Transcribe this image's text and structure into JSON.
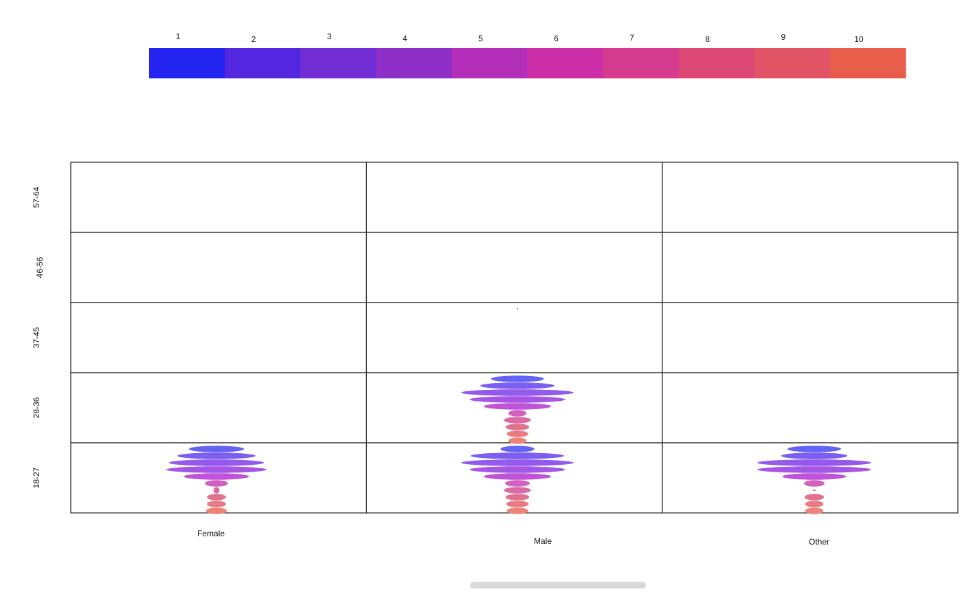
{
  "chart_data": {
    "type": "heatmap",
    "legend": {
      "levels": [
        "1",
        "2",
        "3",
        "4",
        "5",
        "6",
        "7",
        "8",
        "9",
        "10"
      ],
      "colors": [
        "#2424f0",
        "#5327df",
        "#722dd5",
        "#8e2fc7",
        "#b22eb8",
        "#cc2ea8",
        "#d53b8f",
        "#de4876",
        "#e05465",
        "#e85d4a"
      ],
      "placement": "top"
    },
    "x_categories": [
      "Female",
      "Male",
      "Other"
    ],
    "y_categories": [
      "18-27",
      "28-36",
      "37-45",
      "46-56",
      "57-64"
    ],
    "glyph_colors": [
      "#6464f4",
      "#7c5ef0",
      "#935aec",
      "#a656e6",
      "#bf54d8",
      "#d160c0",
      "#dc6aa6",
      "#e1728f",
      "#e87b84",
      "#ec8577"
    ],
    "cells": [
      {
        "x": "Female",
        "y": "18-27",
        "widths": [
          0.55,
          0.78,
          0.95,
          1.0,
          0.65,
          0.23,
          0.06,
          0.19,
          0.19,
          0.21
        ]
      },
      {
        "x": "Male",
        "y": "18-27",
        "widths": [
          0.3,
          0.83,
          1.0,
          0.85,
          0.6,
          0.22,
          0.24,
          0.21,
          0.2,
          0.19
        ]
      },
      {
        "x": "Other",
        "y": "18-27",
        "widths": [
          0.47,
          0.58,
          1.0,
          1.0,
          0.56,
          0.18,
          0.03,
          0.17,
          0.16,
          0.16
        ]
      },
      {
        "x": "Male",
        "y": "28-36",
        "widths": [
          0.47,
          0.66,
          1.0,
          0.85,
          0.6,
          0.16,
          0.24,
          0.21,
          0.19,
          0.16
        ]
      },
      {
        "x": "Male",
        "y": "37-45",
        "widths": [
          0.01,
          0,
          0,
          0,
          0,
          0,
          0,
          0,
          0,
          0
        ]
      }
    ],
    "grid": true
  }
}
